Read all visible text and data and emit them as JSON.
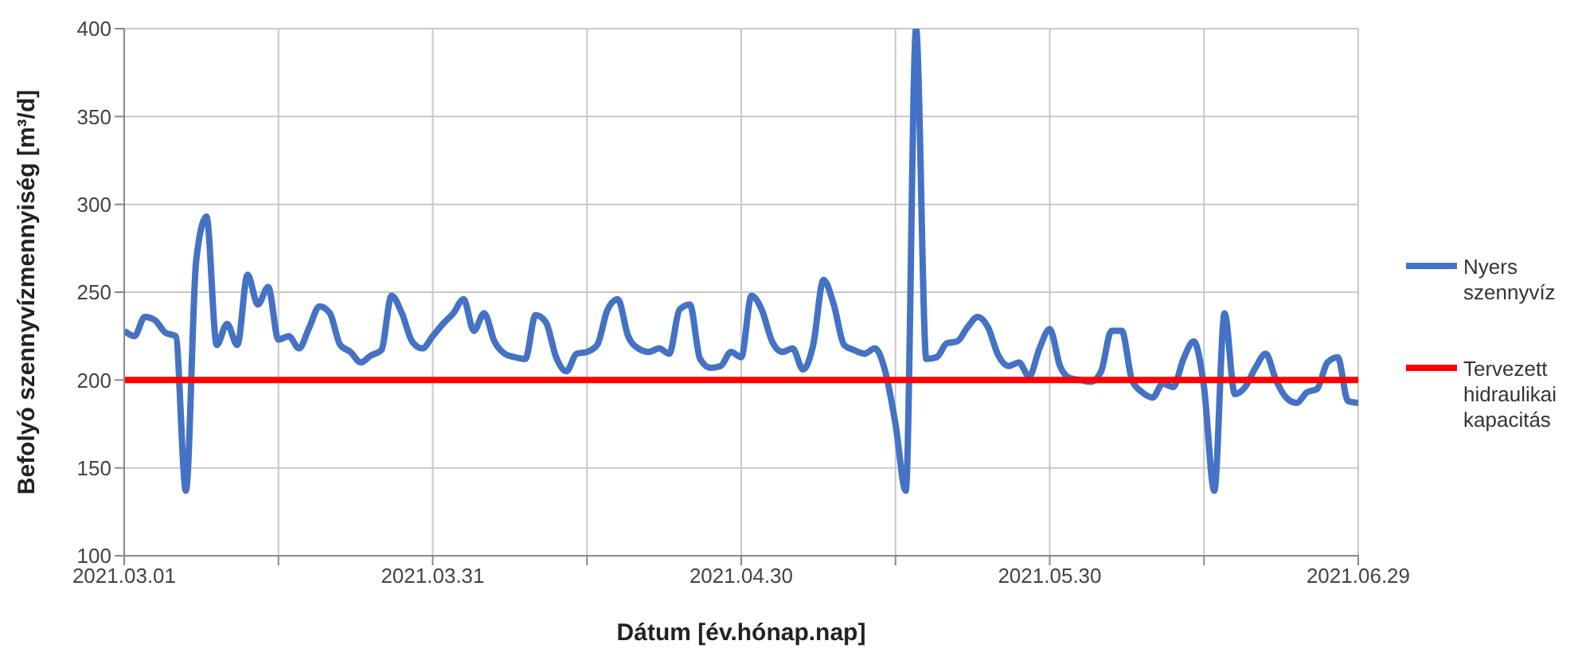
{
  "chart_data": {
    "type": "line",
    "xlabel": "Dátum [év.hónap.nap]",
    "ylabel": "Befolyó szennyvízmennyiség [m³/d]",
    "x": [
      "2021-03-01",
      "2021-03-02",
      "2021-03-03",
      "2021-03-04",
      "2021-03-05",
      "2021-03-06",
      "2021-03-07",
      "2021-03-08",
      "2021-03-09",
      "2021-03-10",
      "2021-03-11",
      "2021-03-12",
      "2021-03-13",
      "2021-03-14",
      "2021-03-15",
      "2021-03-16",
      "2021-03-17",
      "2021-03-18",
      "2021-03-19",
      "2021-03-20",
      "2021-03-21",
      "2021-03-22",
      "2021-03-23",
      "2021-03-24",
      "2021-03-25",
      "2021-03-26",
      "2021-03-27",
      "2021-03-28",
      "2021-03-29",
      "2021-03-30",
      "2021-03-31",
      "2021-04-01",
      "2021-04-02",
      "2021-04-03",
      "2021-04-04",
      "2021-04-05",
      "2021-04-06",
      "2021-04-07",
      "2021-04-08",
      "2021-04-09",
      "2021-04-10",
      "2021-04-11",
      "2021-04-12",
      "2021-04-13",
      "2021-04-14",
      "2021-04-15",
      "2021-04-16",
      "2021-04-17",
      "2021-04-18",
      "2021-04-19",
      "2021-04-20",
      "2021-04-21",
      "2021-04-22",
      "2021-04-23",
      "2021-04-24",
      "2021-04-25",
      "2021-04-26",
      "2021-04-27",
      "2021-04-28",
      "2021-04-29",
      "2021-04-30",
      "2021-05-01",
      "2021-05-02",
      "2021-05-03",
      "2021-05-04",
      "2021-05-05",
      "2021-05-06",
      "2021-05-07",
      "2021-05-08",
      "2021-05-09",
      "2021-05-10",
      "2021-05-11",
      "2021-05-12",
      "2021-05-13",
      "2021-05-14",
      "2021-05-15",
      "2021-05-16",
      "2021-05-17",
      "2021-05-18",
      "2021-05-19",
      "2021-05-20",
      "2021-05-21",
      "2021-05-22",
      "2021-05-23",
      "2021-05-24",
      "2021-05-25",
      "2021-05-26",
      "2021-05-27",
      "2021-05-28",
      "2021-05-29",
      "2021-05-30",
      "2021-05-31",
      "2021-06-01",
      "2021-06-02",
      "2021-06-03",
      "2021-06-04",
      "2021-06-05",
      "2021-06-06",
      "2021-06-07",
      "2021-06-08",
      "2021-06-09",
      "2021-06-10",
      "2021-06-11",
      "2021-06-12",
      "2021-06-13",
      "2021-06-14",
      "2021-06-15",
      "2021-06-16",
      "2021-06-17",
      "2021-06-18",
      "2021-06-19",
      "2021-06-20",
      "2021-06-21",
      "2021-06-22",
      "2021-06-23",
      "2021-06-24",
      "2021-06-25",
      "2021-06-26",
      "2021-06-27",
      "2021-06-28",
      "2021-06-29"
    ],
    "series": [
      {
        "name": "Nyers szennyvíz",
        "color": "#4472c4",
        "values": [
          228,
          225,
          236,
          234,
          227,
          225,
          137,
          268,
          293,
          220,
          232,
          220,
          260,
          243,
          253,
          223,
          225,
          218,
          230,
          242,
          238,
          220,
          216,
          210,
          214,
          217,
          248,
          238,
          222,
          218,
          225,
          232,
          238,
          246,
          228,
          238,
          222,
          215,
          213,
          212,
          237,
          233,
          213,
          205,
          215,
          216,
          220,
          240,
          246,
          225,
          218,
          216,
          218,
          215,
          240,
          243,
          212,
          207,
          208,
          216,
          213,
          248,
          240,
          222,
          216,
          218,
          206,
          220,
          257,
          243,
          220,
          217,
          215,
          218,
          205,
          175,
          137,
          400,
          212,
          213,
          221,
          222,
          230,
          236,
          230,
          214,
          208,
          210,
          202,
          218,
          229,
          208,
          201,
          200,
          199,
          205,
          228,
          228,
          200,
          193,
          190,
          198,
          196,
          212,
          222,
          196,
          137,
          238,
          192,
          196,
          207,
          215,
          200,
          190,
          187,
          193,
          195,
          210,
          213,
          188,
          187
        ]
      },
      {
        "name": "Tervezett hidraulikai kapacitás",
        "color": "#ff0000",
        "x": [
          "2021-03-01",
          "2021-06-29"
        ],
        "values": [
          200,
          200
        ]
      }
    ],
    "xlim": [
      "2021-03-01",
      "2021-06-29"
    ],
    "xticks": [
      {
        "value": "2021-03-01",
        "label": "2021.03.01"
      },
      {
        "value": "2021-03-16",
        "label": null
      },
      {
        "value": "2021-03-31",
        "label": "2021.03.31"
      },
      {
        "value": "2021-04-15",
        "label": null
      },
      {
        "value": "2021-04-30",
        "label": "2021.04.30"
      },
      {
        "value": "2021-05-15",
        "label": null
      },
      {
        "value": "2021-05-30",
        "label": "2021.05.30"
      },
      {
        "value": "2021-06-14",
        "label": null
      },
      {
        "value": "2021-06-29",
        "label": "2021.06.29"
      }
    ],
    "ylim": [
      100,
      400
    ],
    "yticks": [
      100,
      150,
      200,
      250,
      300,
      350,
      400
    ],
    "grid": true,
    "legend": "right",
    "marker": "none",
    "line_style": "solid"
  }
}
